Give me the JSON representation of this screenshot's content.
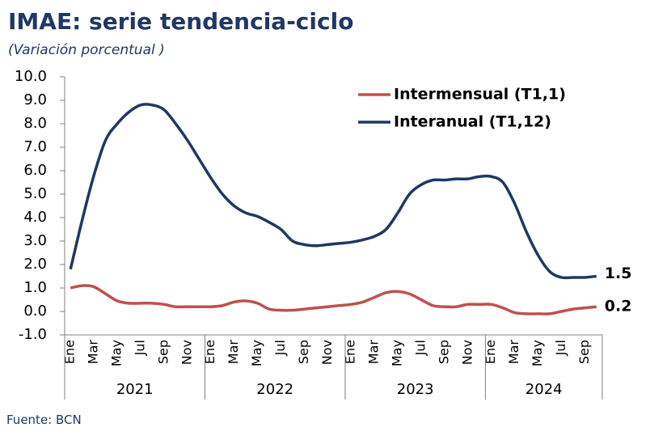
{
  "chart_data": {
    "type": "line",
    "title": "IMAE: serie tendencia-ciclo",
    "subtitle": "(Variación porcentual )",
    "source": "Fuente: BCN",
    "categories": [
      "Ene",
      null,
      "Mar",
      null,
      "May",
      null,
      "Jul",
      null,
      "Sep",
      null,
      "Nov",
      null,
      "Ene",
      null,
      "Mar",
      null,
      "May",
      null,
      "Jul",
      null,
      "Sep",
      null,
      "Nov",
      null,
      "Ene",
      null,
      "Mar",
      null,
      "May",
      null,
      "Jul",
      null,
      "Sep",
      null,
      "Nov",
      null,
      "Ene",
      null,
      "Mar",
      null,
      "May",
      null,
      "Jul",
      null,
      "Sep",
      null
    ],
    "year_groups": [
      "2021",
      "2022",
      "2023",
      "2024"
    ],
    "series": [
      {
        "name": "Intermensual (T1,1)",
        "color": "#c0504d",
        "values": [
          1.0,
          1.1,
          1.05,
          0.75,
          0.45,
          0.35,
          0.35,
          0.35,
          0.3,
          0.2,
          0.2,
          0.2,
          0.2,
          0.25,
          0.4,
          0.45,
          0.35,
          0.1,
          0.05,
          0.05,
          0.1,
          0.15,
          0.2,
          0.25,
          0.3,
          0.4,
          0.6,
          0.8,
          0.85,
          0.75,
          0.5,
          0.25,
          0.2,
          0.2,
          0.3,
          0.3,
          0.3,
          0.15,
          -0.05,
          -0.1,
          -0.1,
          -0.1,
          0.0,
          0.1,
          0.15,
          0.2
        ]
      },
      {
        "name": "Interanual (T1,12)",
        "color": "#1f3864",
        "values": [
          1.8,
          3.9,
          5.8,
          7.3,
          8.0,
          8.5,
          8.8,
          8.8,
          8.6,
          8.0,
          7.3,
          6.5,
          5.7,
          5.0,
          4.5,
          4.2,
          4.05,
          3.8,
          3.5,
          3.0,
          2.85,
          2.8,
          2.85,
          2.9,
          2.95,
          3.05,
          3.2,
          3.5,
          4.2,
          5.0,
          5.4,
          5.6,
          5.6,
          5.65,
          5.65,
          5.75,
          5.75,
          5.5,
          4.6,
          3.4,
          2.4,
          1.7,
          1.45,
          1.45,
          1.45,
          1.5
        ]
      }
    ],
    "ylim": [
      -1,
      10
    ],
    "yticks": [
      {
        "value": -1,
        "label": "-1.0"
      },
      {
        "value": 0,
        "label": "0.0"
      },
      {
        "value": 1,
        "label": "1.0"
      },
      {
        "value": 2,
        "label": "2.0"
      },
      {
        "value": 3,
        "label": "3.0"
      },
      {
        "value": 4,
        "label": "4.0"
      },
      {
        "value": 5,
        "label": "5.0"
      },
      {
        "value": 6,
        "label": "6.0"
      },
      {
        "value": 7,
        "label": "7.0"
      },
      {
        "value": 8,
        "label": "8.0"
      },
      {
        "value": 9,
        "label": "9.0"
      },
      {
        "value": 10,
        "label": "10.0"
      }
    ],
    "legend": "upper right"
  }
}
